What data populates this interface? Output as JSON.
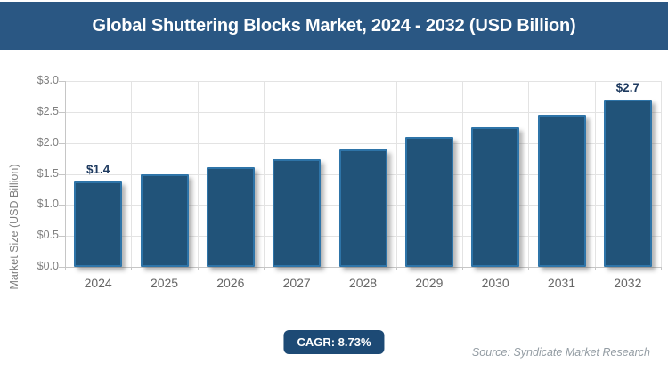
{
  "header": {
    "title": "Global Shuttering Blocks Market, 2024 - 2032 (USD Billion)"
  },
  "chart_data": {
    "type": "bar",
    "title": "Global Shuttering Blocks Market, 2024 - 2032 (USD Billion)",
    "categories": [
      "2024",
      "2025",
      "2026",
      "2027",
      "2028",
      "2029",
      "2030",
      "2031",
      "2032"
    ],
    "values": [
      1.38,
      1.49,
      1.61,
      1.74,
      1.9,
      2.09,
      2.26,
      2.46,
      2.7
    ],
    "point_labels": [
      "$1.4",
      "",
      "",
      "",
      "",
      "",
      "",
      "",
      "$2.7"
    ],
    "xlabel": "",
    "ylabel": "Market Size (USD Billion)",
    "ylim": [
      0,
      3.0
    ],
    "y_tick_step": 0.5,
    "y_tick_labels": [
      "$0.0",
      "$0.5",
      "$1.0",
      "$1.5",
      "$2.0",
      "$2.5",
      "$3.0"
    ],
    "grid": true,
    "legend": false,
    "bar_color": "#215379",
    "bar_border_color": "#2e74a8"
  },
  "footer": {
    "cagr_label": "CAGR: 8.73%",
    "source": "Source: Syndicate Market Research"
  },
  "colors": {
    "title_bg": "#2A5783",
    "badge_bg": "#1d4a75",
    "grid": "#e3e3e3",
    "axis": "#c6c6c6",
    "tick_text": "#7f7f7f",
    "category_text": "#666666",
    "value_label_text": "#1e3a5f",
    "source_text": "#939ca3"
  }
}
